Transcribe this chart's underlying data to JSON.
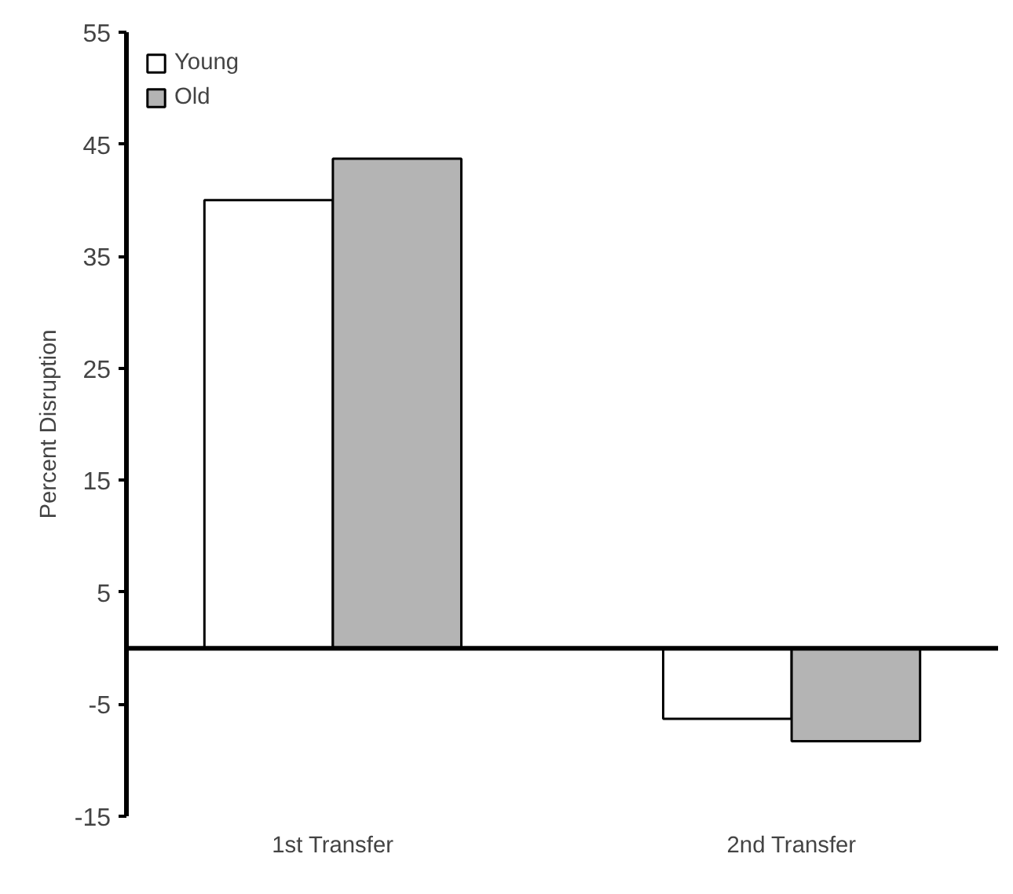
{
  "chart_data": {
    "type": "bar",
    "ylabel": "Percent Disruption",
    "categories": [
      "1st Transfer",
      "2nd Transfer"
    ],
    "series": [
      {
        "name": "Young",
        "color": "#ffffff",
        "values": [
          40,
          -6.3
        ]
      },
      {
        "name": "Old",
        "color": "#b4b4b4",
        "values": [
          43.7,
          -8.3
        ]
      }
    ],
    "ylim": [
      -15,
      55
    ],
    "yticks": [
      -15,
      -5,
      5,
      15,
      25,
      35,
      45,
      55
    ],
    "grid": false,
    "legend": "top left"
  }
}
